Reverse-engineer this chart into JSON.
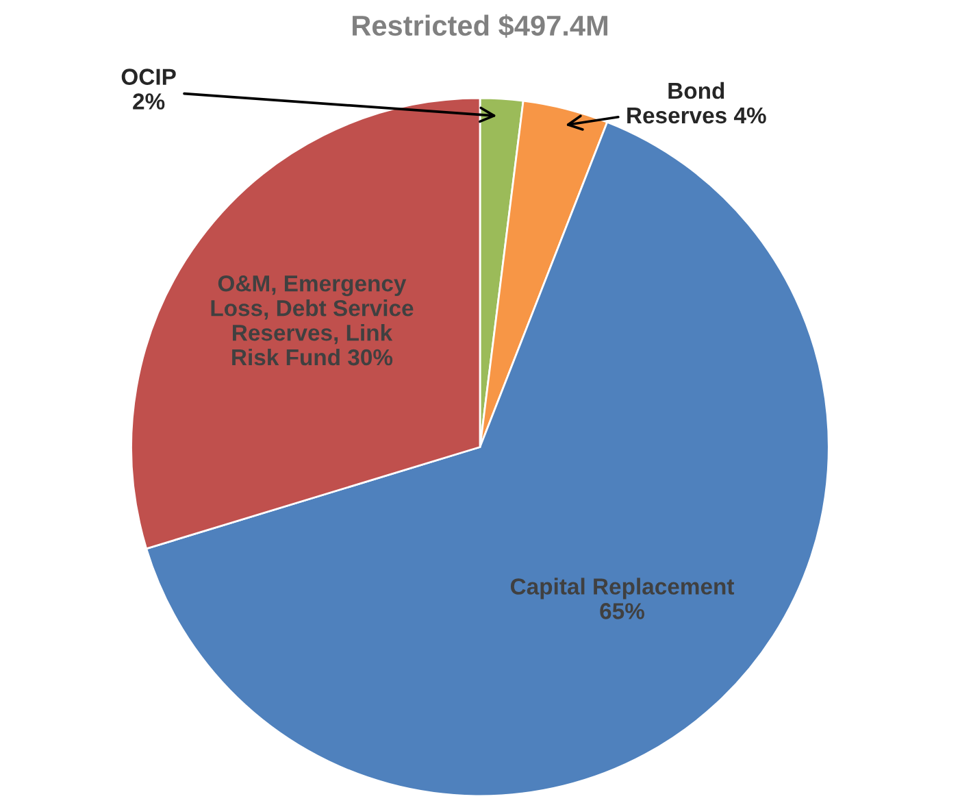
{
  "chart_data": {
    "type": "pie",
    "title": "Restricted $497.4M",
    "categories": [
      "OCIP",
      "Bond\nReserves",
      "Capital Replacement",
      "O&M, Emergency\nLoss, Debt Service\nReserves, Link\nRisk Fund"
    ],
    "values": [
      2,
      4,
      65,
      30
    ],
    "colors": [
      "#9bbb59",
      "#f79646",
      "#4f81bd",
      "#c0504d"
    ],
    "value_labels": [
      "2%",
      "4%",
      "65%",
      "30%"
    ],
    "legend": false
  }
}
